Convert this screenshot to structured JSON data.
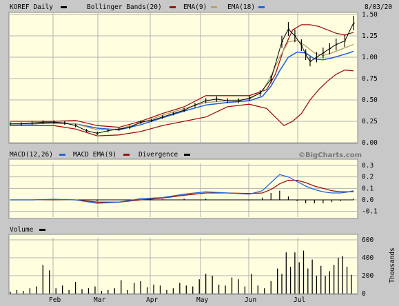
{
  "header": {
    "symbol_label": "KOREF Daily",
    "bb_label": "Bollinger Bands(20)",
    "ema9_label": "EMA(9)",
    "ema18_label": "EMA(18)",
    "date": "8/03/20"
  },
  "macd_header": {
    "macd_label": "MACD(12,26)",
    "macd_ema_label": "MACD EMA(9)",
    "divergence_label": "Divergence",
    "watermark": "©BigCharts.com"
  },
  "volume_header": {
    "volume_label": "Volume",
    "units_label": "Thousands"
  },
  "colors": {
    "panel_bg": "#ffffe0",
    "frame": "#c8c8c8",
    "price": "#000000",
    "bollinger": "#a01010",
    "ema9": "#b8a070",
    "ema18": "#2266dd",
    "macd": "#2266dd",
    "macd_ema": "#a01010",
    "divergence": "#000000",
    "volume": "#000000"
  },
  "chart_data": [
    {
      "type": "ohlc",
      "title": "KOREF Daily",
      "yticks": [
        "0.00",
        "0.25",
        "0.50",
        "0.75",
        "1.00",
        "1.25",
        "1.50"
      ],
      "ylim": [
        0,
        1.5
      ],
      "months": [
        "Feb",
        "Mar",
        "Apr",
        "May",
        "Jun",
        "Jul"
      ],
      "grid": true,
      "series": [
        {
          "name": "KOREF Daily",
          "x": [
            0,
            5,
            10,
            15,
            20,
            25,
            30,
            35,
            40,
            45,
            50,
            55,
            60,
            65,
            70,
            75,
            80,
            85,
            90,
            95,
            100,
            105,
            110,
            115,
            120,
            125,
            128,
            131,
            134,
            136,
            138,
            141,
            144,
            147,
            150,
            154,
            158
          ],
          "values": [
            0.22,
            0.22,
            0.23,
            0.24,
            0.24,
            0.23,
            0.2,
            0.14,
            0.11,
            0.14,
            0.16,
            0.18,
            0.24,
            0.26,
            0.3,
            0.34,
            0.38,
            0.44,
            0.49,
            0.51,
            0.49,
            0.49,
            0.52,
            0.58,
            0.74,
            1.18,
            1.33,
            1.25,
            1.14,
            1.03,
            0.95,
            1.0,
            1.05,
            1.1,
            1.15,
            1.19,
            1.4
          ]
        },
        {
          "name": "Bollinger Bands(20)",
          "x": [
            0,
            10,
            20,
            30,
            40,
            50,
            60,
            70,
            80,
            90,
            100,
            110,
            118,
            122,
            126,
            130,
            134,
            138,
            142,
            146,
            150,
            154,
            158
          ],
          "values": [
            0.25,
            0.25,
            0.25,
            0.26,
            0.2,
            0.18,
            0.25,
            0.34,
            0.42,
            0.55,
            0.55,
            0.55,
            0.62,
            0.8,
            1.1,
            1.32,
            1.38,
            1.38,
            1.36,
            1.32,
            1.28,
            1.26,
            1.29
          ]
        },
        {
          "name": "Bollinger Bands(20)",
          "x": [
            0,
            10,
            20,
            30,
            40,
            50,
            60,
            70,
            80,
            90,
            100,
            110,
            118,
            122,
            126,
            130,
            134,
            138,
            142,
            146,
            150,
            154,
            158
          ],
          "values": [
            0.2,
            0.2,
            0.2,
            0.16,
            0.08,
            0.09,
            0.13,
            0.2,
            0.25,
            0.3,
            0.42,
            0.45,
            0.4,
            0.3,
            0.2,
            0.25,
            0.34,
            0.5,
            0.62,
            0.72,
            0.8,
            0.85,
            0.84
          ]
        },
        {
          "name": "EMA(9)",
          "x": [
            0,
            10,
            20,
            30,
            40,
            50,
            60,
            70,
            80,
            90,
            100,
            110,
            116,
            120,
            124,
            128,
            132,
            136,
            140,
            144,
            148,
            152,
            156,
            158
          ],
          "values": [
            0.22,
            0.23,
            0.24,
            0.22,
            0.15,
            0.16,
            0.23,
            0.32,
            0.4,
            0.47,
            0.49,
            0.51,
            0.6,
            0.78,
            1.0,
            1.18,
            1.2,
            1.13,
            1.05,
            1.02,
            1.05,
            1.09,
            1.13,
            1.15
          ]
        },
        {
          "name": "EMA(18)",
          "x": [
            0,
            10,
            20,
            30,
            40,
            50,
            60,
            70,
            80,
            90,
            100,
            110,
            116,
            120,
            124,
            128,
            132,
            136,
            140,
            144,
            148,
            152,
            156,
            158
          ],
          "values": [
            0.22,
            0.22,
            0.23,
            0.22,
            0.17,
            0.15,
            0.21,
            0.29,
            0.37,
            0.44,
            0.47,
            0.49,
            0.54,
            0.66,
            0.84,
            1.0,
            1.06,
            1.05,
            0.98,
            0.97,
            0.99,
            1.02,
            1.05,
            1.07
          ]
        }
      ]
    },
    {
      "type": "line",
      "title": "MACD(12,26)",
      "yticks": [
        "-0.1",
        "0.0",
        "0.1",
        "0.2",
        "0.3"
      ],
      "ylim": [
        -0.15,
        0.3
      ],
      "series": [
        {
          "name": "MACD(12,26)",
          "x": [
            0,
            10,
            20,
            30,
            40,
            50,
            60,
            70,
            80,
            90,
            100,
            110,
            116,
            120,
            124,
            128,
            132,
            136,
            140,
            144,
            148,
            152,
            156,
            158
          ],
          "values": [
            0.0,
            0.0,
            0.005,
            0.0,
            -0.03,
            -0.02,
            0.01,
            0.02,
            0.05,
            0.07,
            0.06,
            0.05,
            0.08,
            0.15,
            0.22,
            0.2,
            0.16,
            0.12,
            0.09,
            0.07,
            0.06,
            0.06,
            0.07,
            0.08
          ]
        },
        {
          "name": "MACD EMA(9)",
          "x": [
            0,
            10,
            20,
            30,
            40,
            50,
            60,
            70,
            80,
            90,
            100,
            110,
            116,
            120,
            124,
            128,
            132,
            136,
            140,
            144,
            148,
            152,
            156,
            158
          ],
          "values": [
            0.0,
            0.0,
            0.003,
            0.0,
            -0.02,
            -0.02,
            0.0,
            0.015,
            0.04,
            0.06,
            0.06,
            0.055,
            0.06,
            0.09,
            0.14,
            0.17,
            0.17,
            0.15,
            0.12,
            0.1,
            0.08,
            0.07,
            0.07,
            0.07
          ]
        },
        {
          "name": "Divergence",
          "x": [
            0,
            10,
            20,
            30,
            40,
            50,
            60,
            70,
            80,
            90,
            100,
            110,
            116,
            120,
            124,
            128,
            132,
            136,
            140,
            144,
            148,
            152,
            156,
            158
          ],
          "values": [
            0.0,
            0.0,
            0.002,
            0.0,
            -0.01,
            0.0,
            0.01,
            0.005,
            0.01,
            0.01,
            0.0,
            -0.005,
            0.02,
            0.06,
            0.08,
            0.03,
            -0.01,
            -0.03,
            -0.03,
            -0.03,
            -0.02,
            -0.01,
            0.0,
            0.01
          ]
        }
      ]
    },
    {
      "type": "bar",
      "title": "Volume",
      "yticks": [
        "0",
        "200",
        "400",
        "600"
      ],
      "ylim": [
        0,
        600
      ],
      "ylabel": "Thousands",
      "series": [
        {
          "name": "Volume",
          "x": [
            0,
            3,
            6,
            9,
            12,
            15,
            18,
            21,
            24,
            27,
            30,
            33,
            36,
            39,
            42,
            45,
            48,
            51,
            54,
            57,
            60,
            63,
            66,
            69,
            72,
            75,
            78,
            81,
            84,
            87,
            90,
            93,
            96,
            99,
            102,
            105,
            108,
            111,
            114,
            117,
            120,
            123,
            125,
            127,
            129,
            131,
            133,
            135,
            137,
            139,
            141,
            143,
            145,
            147,
            149,
            151,
            153,
            155,
            157
          ],
          "values": [
            20,
            40,
            30,
            60,
            80,
            320,
            260,
            60,
            90,
            40,
            130,
            50,
            60,
            80,
            30,
            40,
            60,
            150,
            40,
            120,
            140,
            70,
            100,
            90,
            40,
            60,
            120,
            90,
            80,
            160,
            220,
            200,
            100,
            90,
            180,
            160,
            80,
            220,
            90,
            60,
            140,
            280,
            220,
            460,
            300,
            460,
            350,
            480,
            280,
            380,
            200,
            310,
            200,
            250,
            320,
            400,
            420,
            300,
            210
          ]
        }
      ]
    }
  ]
}
